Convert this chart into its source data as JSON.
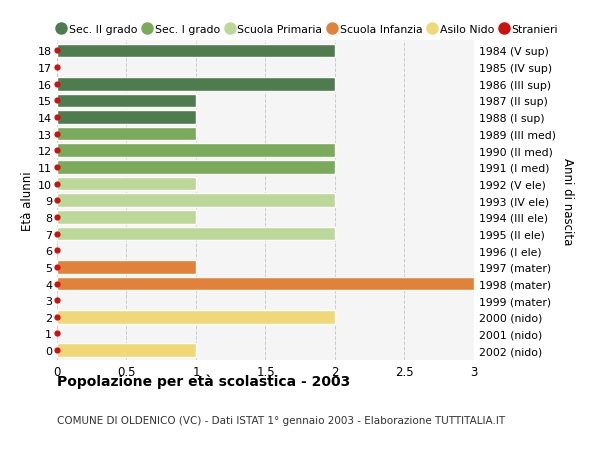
{
  "ages": [
    18,
    17,
    16,
    15,
    14,
    13,
    12,
    11,
    10,
    9,
    8,
    7,
    6,
    5,
    4,
    3,
    2,
    1,
    0
  ],
  "right_labels": [
    "1984 (V sup)",
    "1985 (IV sup)",
    "1986 (III sup)",
    "1987 (II sup)",
    "1988 (I sup)",
    "1989 (III med)",
    "1990 (II med)",
    "1991 (I med)",
    "1992 (V ele)",
    "1993 (IV ele)",
    "1994 (III ele)",
    "1995 (II ele)",
    "1996 (I ele)",
    "1997 (mater)",
    "1998 (mater)",
    "1999 (mater)",
    "2000 (nido)",
    "2001 (nido)",
    "2002 (nido)"
  ],
  "bar_values": [
    2,
    0,
    2,
    1,
    1,
    1,
    2,
    2,
    1,
    2,
    1,
    2,
    0,
    1,
    3,
    0,
    2,
    0,
    1
  ],
  "bar_colors": [
    "#4e7c4e",
    "#4e7c4e",
    "#4e7c4e",
    "#4e7c4e",
    "#4e7c4e",
    "#7aaa5a",
    "#7aaa5a",
    "#7aaa5a",
    "#bcd898",
    "#bcd898",
    "#bcd898",
    "#bcd898",
    "#bcd898",
    "#e0823a",
    "#e0823a",
    "#e0823a",
    "#f0d878",
    "#f0d878",
    "#f0d878"
  ],
  "legend_labels": [
    "Sec. II grado",
    "Sec. I grado",
    "Scuola Primaria",
    "Scuola Infanzia",
    "Asilo Nido",
    "Stranieri"
  ],
  "legend_colors": [
    "#4e7c4e",
    "#7aaa5a",
    "#bcd898",
    "#e0823a",
    "#f0d878",
    "#cc1111"
  ],
  "ylabel_left": "Età alunni",
  "ylabel_right": "Anni di nascita",
  "title": "Popolazione per età scolastica - 2003",
  "subtitle": "COMUNE DI OLDENICO (VC) - Dati ISTAT 1° gennaio 2003 - Elaborazione TUTTITALIA.IT",
  "xlim": [
    0,
    3.0
  ],
  "xticks": [
    0,
    0.5,
    1.0,
    1.5,
    2.0,
    2.5,
    3.0
  ],
  "bg_color": "#f5f5f5",
  "bar_edge_color": "white",
  "dot_color": "#cc1111",
  "grid_color": "#cccccc"
}
